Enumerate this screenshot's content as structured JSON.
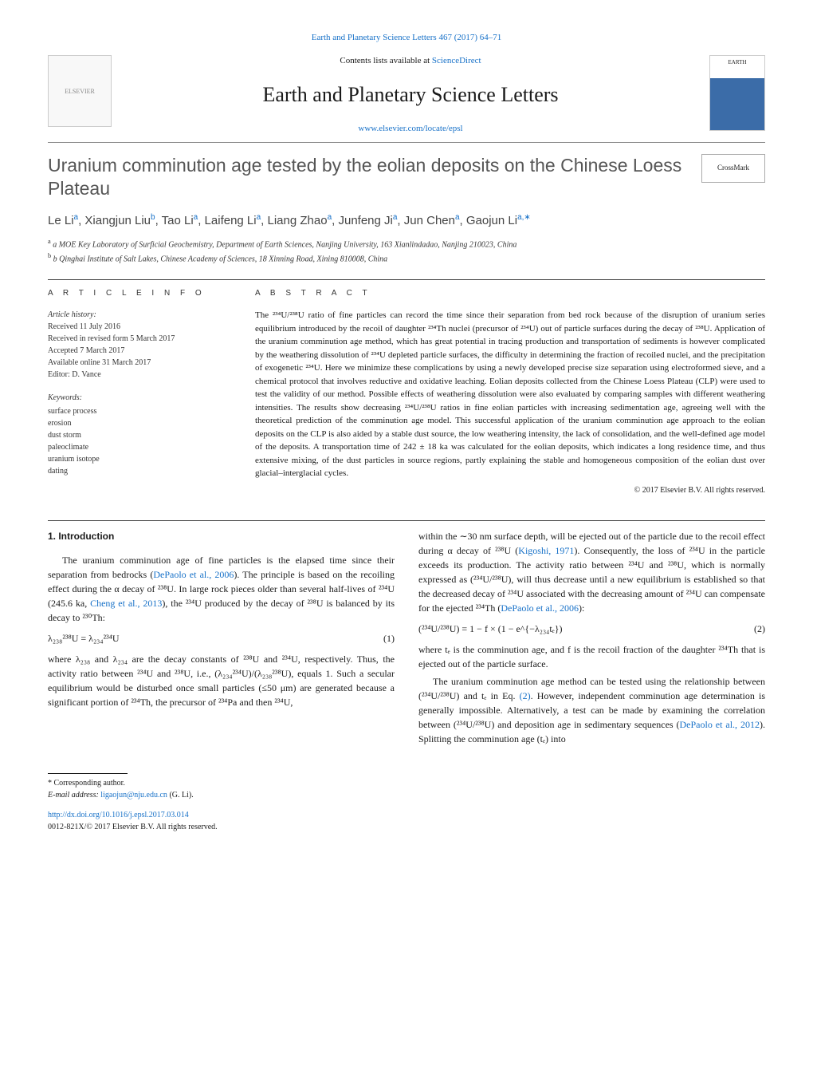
{
  "journal": {
    "issue_line": "Earth and Planetary Science Letters 467 (2017) 64–71",
    "contents_prefix": "Contents lists available at ",
    "contents_link": "ScienceDirect",
    "title": "Earth and Planetary Science Letters",
    "homepage": "www.elsevier.com/locate/epsl",
    "cover_label": "EARTH"
  },
  "logo": {
    "alt": "ELSEVIER"
  },
  "crossmark": {
    "label": "CrossMark"
  },
  "article": {
    "title": "Uranium comminution age tested by the eolian deposits on the Chinese Loess Plateau",
    "authors_html": "Le Li<sup>a</sup>, Xiangjun Liu<sup>b</sup>, Tao Li<sup>a</sup>, Laifeng Li<sup>a</sup>, Liang Zhao<sup>a</sup>, Junfeng Ji<sup>a</sup>, Jun Chen<sup>a</sup>, Gaojun Li<sup>a,∗</sup>",
    "affil_a": "a  MOE Key Laboratory of Surficial Geochemistry, Department of Earth Sciences, Nanjing University, 163 Xianlindadao, Nanjing 210023, China",
    "affil_b": "b  Qinghai Institute of Salt Lakes, Chinese Academy of Sciences, 18 Xinning Road, Xining 810008, China"
  },
  "labels": {
    "article_info": "A R T I C L E   I N F O",
    "abstract": "A B S T R A C T",
    "history": "Article history:",
    "keywords": "Keywords:"
  },
  "history": {
    "received": "Received 11 July 2016",
    "revised": "Received in revised form 5 March 2017",
    "accepted": "Accepted 7 March 2017",
    "online": "Available online 31 March 2017",
    "editor": "Editor: D. Vance"
  },
  "keywords": [
    "surface process",
    "erosion",
    "dust storm",
    "paleoclimate",
    "uranium isotope",
    "dating"
  ],
  "abstract": "The ²³⁴U/²³⁸U ratio of fine particles can record the time since their separation from bed rock because of the disruption of uranium series equilibrium introduced by the recoil of daughter ²³⁴Th nuclei (precursor of ²³⁴U) out of particle surfaces during the decay of ²³⁸U. Application of the uranium comminution age method, which has great potential in tracing production and transportation of sediments is however complicated by the weathering dissolution of ²³⁴U depleted particle surfaces, the difficulty in determining the fraction of recoiled nuclei, and the precipitation of exogenetic ²³⁴U. Here we minimize these complications by using a newly developed precise size separation using electroformed sieve, and a chemical protocol that involves reductive and oxidative leaching. Eolian deposits collected from the Chinese Loess Plateau (CLP) were used to test the validity of our method. Possible effects of weathering dissolution were also evaluated by comparing samples with different weathering intensities. The results show decreasing ²³⁴U/²³⁸U ratios in fine eolian particles with increasing sedimentation age, agreeing well with the theoretical prediction of the comminution age model. This successful application of the uranium comminution age approach to the eolian deposits on the CLP is also aided by a stable dust source, the low weathering intensity, the lack of consolidation, and the well-defined age model of the deposits. A transportation time of 242 ± 18 ka was calculated for the eolian deposits, which indicates a long residence time, and thus extensive mixing, of the dust particles in source regions, partly explaining the stable and homogeneous composition of the eolian dust over glacial–interglacial cycles.",
  "copyright": "© 2017 Elsevier B.V. All rights reserved.",
  "section1": {
    "heading": "1. Introduction",
    "p1_pre": "The uranium comminution age of fine particles is the elapsed time since their separation from bedrocks (",
    "p1_ref1": "DePaolo et al., 2006",
    "p1_mid1": "). The principle is based on the recoiling effect during the α decay of ²³⁸U. In large rock pieces older than several half-lives of ²³⁴U (245.6 ka, ",
    "p1_ref2": "Cheng et al., 2013",
    "p1_post": "), the ²³⁴U produced by the decay of ²³⁸U is balanced by its decay to ²³⁰Th:",
    "eq1": "λ₂₃₈²³⁸U = λ₂₃₄²³⁴U",
    "eq1_num": "(1)",
    "p2": "where λ₂₃₈ and λ₂₃₄ are the decay constants of ²³⁸U and ²³⁴U, respectively. Thus, the activity ratio between ²³⁴U and ²³⁸U, i.e., (λ₂₃₄²³⁴U)/(λ₂₃₈²³⁸U), equals 1. Such a secular equilibrium would be disturbed once small particles (≤50 μm) are generated because a significant portion of ²³⁴Th, the precursor of ²³⁴Pa and then ²³⁴U,",
    "p3_pre": "within the ∼30 nm surface depth, will be ejected out of the particle due to the recoil effect during α decay of ²³⁸U (",
    "p3_ref1": "Kigoshi, 1971",
    "p3_mid": "). Consequently, the loss of ²³⁴U in the particle exceeds its production. The activity ratio between ²³⁴U and ²³⁸U, which is normally expressed as (²³⁴U/²³⁸U), will thus decrease until a new equilibrium is established so that the decreased decay of ²³⁴U associated with the decreasing amount of ²³⁴U can compensate for the ejected ²³⁴Th (",
    "p3_ref2": "DePaolo et al., 2006",
    "p3_post": "):",
    "eq2": "(²³⁴U/²³⁸U) = 1 − f × (1 − e^{−λ₂₃₄tₑ})",
    "eq2_num": "(2)",
    "p4": "where tₑ is the comminution age, and f is the recoil fraction of the daughter ²³⁴Th that is ejected out of the particle surface.",
    "p5_pre": "The uranium comminution age method can be tested using the relationship between (²³⁴U/²³⁸U) and tₑ in Eq. ",
    "p5_refeq": "(2)",
    "p5_mid": ". However, independent comminution age determination is generally impossible. Alternatively, a test can be made by examining the correlation between (²³⁴U/²³⁸U) and deposition age in sedimentary sequences (",
    "p5_ref1": "DePaolo et al., 2012",
    "p5_post": "). Splitting the comminution age (tₑ) into"
  },
  "footer": {
    "corr_label": "* Corresponding author.",
    "email_label": "E-mail address:",
    "email": "ligaojun@nju.edu.cn",
    "email_name": "(G. Li).",
    "doi": "http://dx.doi.org/10.1016/j.epsl.2017.03.014",
    "issn_line": "0012-821X/© 2017 Elsevier B.V. All rights reserved."
  }
}
